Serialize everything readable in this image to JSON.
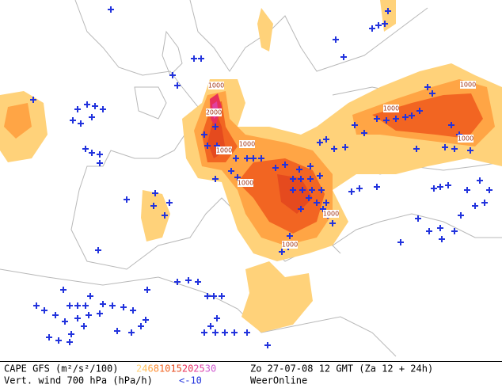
{
  "footer": {
    "left_line1": "CAPE GFS (m²/s²/100)",
    "left_line2": "Vert. wind 700 hPa (hPa/h)",
    "legend": [
      {
        "label": 2,
        "color": "#ffd27a"
      },
      {
        "label": 4,
        "color": "#ffbf55"
      },
      {
        "label": 6,
        "color": "#ffa545"
      },
      {
        "label": 8,
        "color": "#ff8a30"
      },
      {
        "label": 10,
        "color": "#f26522"
      },
      {
        "label": 15,
        "color": "#e54a1e"
      },
      {
        "label": 20,
        "color": "#e8305a"
      },
      {
        "label": 25,
        "color": "#e040a0"
      },
      {
        "label": 30,
        "color": "#d05ad0"
      }
    ],
    "wind_label": "<-10",
    "wind_color": "#2233dd",
    "valid_time": "Zo 27-07-08 12 GMT (Za 12 + 24h)",
    "source": "WeerOnline"
  },
  "map": {
    "contour_labels": [
      "1000",
      "2000",
      "1000",
      "1000",
      "1000",
      "1000",
      "1000",
      "1000",
      "1000",
      "1000"
    ]
  }
}
